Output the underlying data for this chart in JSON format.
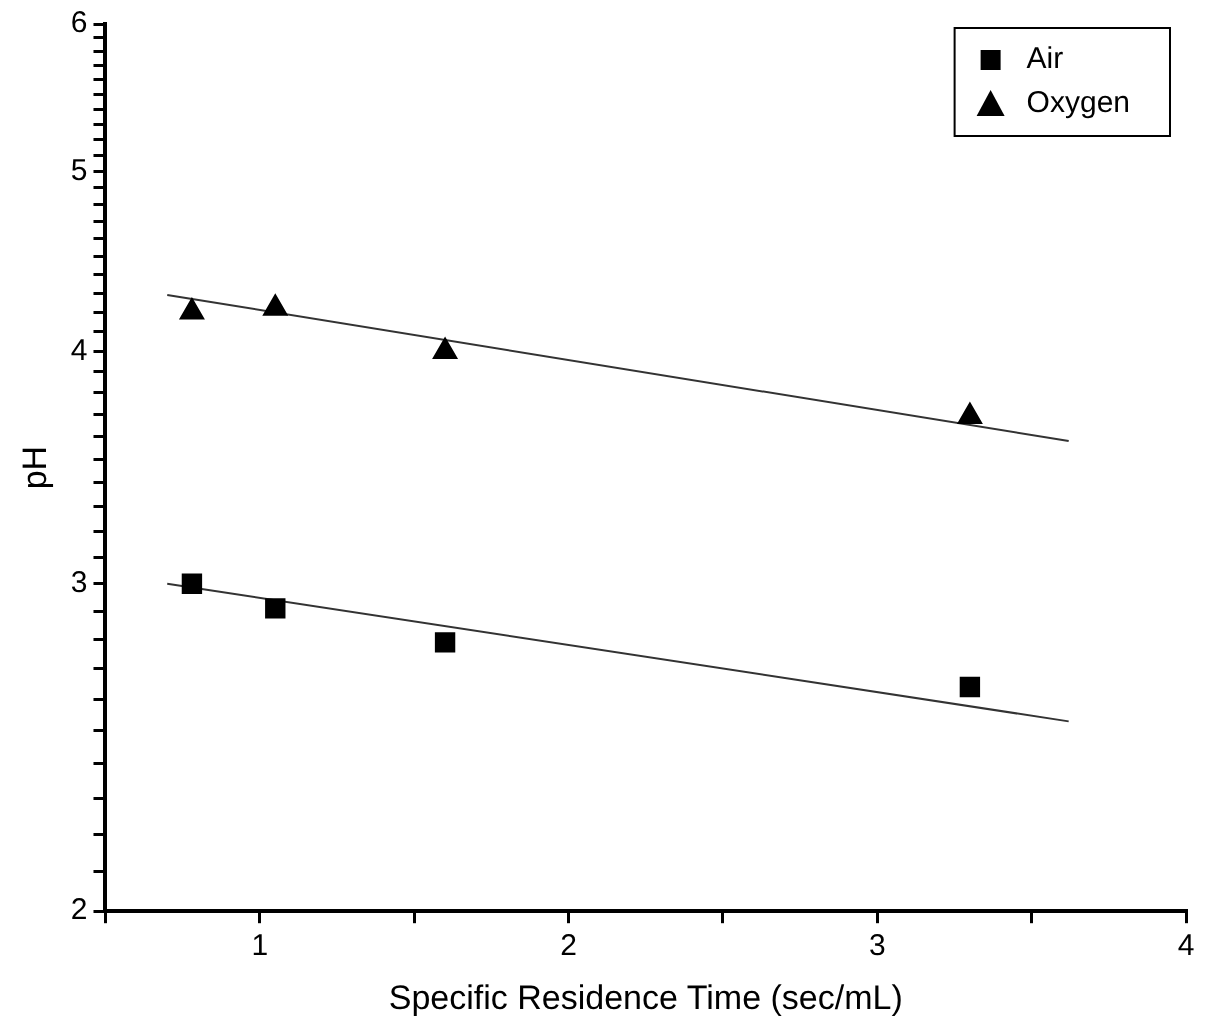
{
  "chart_data": {
    "type": "scatter",
    "xlabel": "Specific Residence Time (sec/mL)",
    "ylabel": "pH",
    "log": "y",
    "xlim": [
      0.5,
      4
    ],
    "xticks": [
      {
        "value": 0.5,
        "label": null
      },
      1,
      {
        "value": 1.5,
        "label": null
      },
      2,
      {
        "value": 2.5,
        "label": null
      },
      3,
      {
        "value": 3.5,
        "label": null
      },
      4
    ],
    "ylim": [
      2,
      6
    ],
    "yticks": [
      2,
      {
        "value": 2.1,
        "label": null
      },
      {
        "value": 2.2,
        "label": null
      },
      {
        "value": 2.3,
        "label": null
      },
      {
        "value": 2.4,
        "label": null
      },
      {
        "value": 2.5,
        "label": null
      },
      {
        "value": 2.6,
        "label": null
      },
      {
        "value": 2.7,
        "label": null
      },
      {
        "value": 2.8,
        "label": null
      },
      {
        "value": 2.9,
        "label": null
      },
      3,
      {
        "value": 3.1,
        "label": null
      },
      {
        "value": 3.2,
        "label": null
      },
      {
        "value": 3.3,
        "label": null
      },
      {
        "value": 3.4,
        "label": null
      },
      {
        "value": 3.5,
        "label": null
      },
      {
        "value": 3.6,
        "label": null
      },
      {
        "value": 3.7,
        "label": null
      },
      {
        "value": 3.8,
        "label": null
      },
      {
        "value": 3.9,
        "label": null
      },
      4,
      {
        "value": 4.1,
        "label": null
      },
      {
        "value": 4.2,
        "label": null
      },
      {
        "value": 4.3,
        "label": null
      },
      {
        "value": 4.4,
        "label": null
      },
      {
        "value": 4.5,
        "label": null
      },
      {
        "value": 4.6,
        "label": null
      },
      {
        "value": 4.7,
        "label": null
      },
      {
        "value": 4.8,
        "label": null
      },
      {
        "value": 4.9,
        "label": null
      },
      5,
      {
        "value": 5.1,
        "label": null
      },
      {
        "value": 5.2,
        "label": null
      },
      {
        "value": 5.3,
        "label": null
      },
      {
        "value": 5.4,
        "label": null
      },
      {
        "value": 5.5,
        "label": null
      },
      {
        "value": 5.6,
        "label": null
      },
      {
        "value": 5.7,
        "label": null
      },
      {
        "value": 5.8,
        "label": null
      },
      {
        "value": 5.9,
        "label": null
      },
      6
    ],
    "grid": false,
    "legend": "top right",
    "series": [
      {
        "name": "Air",
        "type": "scatter",
        "marker": "square",
        "color": "#000000",
        "x": [
          0.78,
          1.05,
          1.6,
          3.3
        ],
        "values": [
          3.0,
          2.91,
          2.79,
          2.64
        ]
      },
      {
        "name": "Oxygen",
        "type": "scatter",
        "marker": "triangle",
        "color": "#000000",
        "x": [
          0.78,
          1.05,
          1.6,
          3.3
        ],
        "values": [
          4.2,
          4.22,
          4.0,
          3.69
        ]
      },
      {
        "type": "line",
        "marker": "none",
        "color": "#333333",
        "x": [
          0.7,
          3.62
        ],
        "values": [
          3.0,
          2.53
        ]
      },
      {
        "type": "line",
        "marker": "none",
        "color": "#333333",
        "x": [
          0.7,
          3.62
        ],
        "values": [
          4.29,
          3.58
        ]
      }
    ]
  }
}
